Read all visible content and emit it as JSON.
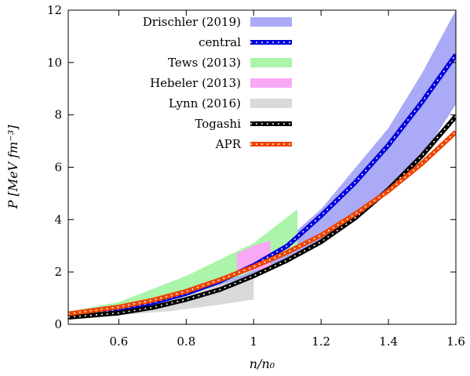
{
  "chart_data": {
    "type": "area",
    "xlabel": "n/n₀",
    "ylabel": "P [MeV fm⁻³]",
    "xlim": [
      0.45,
      1.6
    ],
    "ylim": [
      0,
      12
    ],
    "xticks": [
      0.6,
      0.8,
      1.0,
      1.2,
      1.4,
      1.6
    ],
    "xtick_labels": [
      "0.6",
      "0.8",
      "1",
      "1.2",
      "1.4",
      "1.6"
    ],
    "yticks": [
      0,
      2,
      4,
      6,
      8,
      10,
      12
    ],
    "ytick_labels": [
      "0",
      "2",
      "4",
      "6",
      "8",
      "10",
      "12"
    ],
    "grid": false,
    "legend_placement": "top-center",
    "bands": [
      {
        "name": "Drischler (2019)",
        "color": "#aaaaf6",
        "x": [
          0.45,
          0.6,
          0.8,
          1.0,
          1.13,
          1.2,
          1.4,
          1.5,
          1.6
        ],
        "lower": [
          0.3,
          0.55,
          1.05,
          1.85,
          2.7,
          3.2,
          5.0,
          6.4,
          8.4
        ],
        "upper": [
          0.4,
          0.7,
          1.35,
          2.55,
          3.6,
          4.4,
          7.5,
          9.6,
          12.0
        ]
      },
      {
        "name": "Tews (2013)",
        "color": "#aaf5aa",
        "x": [
          0.45,
          0.6,
          0.8,
          1.0,
          1.13
        ],
        "lower": [
          0.35,
          0.55,
          1.05,
          2.05,
          3.0
        ],
        "upper": [
          0.48,
          0.85,
          1.85,
          3.1,
          4.4
        ]
      },
      {
        "name": "Hebeler (2013)",
        "color": "#f8a8f4",
        "x": [
          0.95,
          1.0,
          1.05
        ],
        "lower": [
          1.9,
          2.05,
          2.2
        ],
        "upper": [
          2.7,
          3.0,
          3.2
        ]
      },
      {
        "name": "Lynn (2016)",
        "color": "#d9d9d9",
        "x": [
          0.45,
          0.6,
          0.75,
          0.9,
          1.0
        ],
        "lower": [
          0.25,
          0.35,
          0.5,
          0.75,
          0.95
        ],
        "upper": [
          0.35,
          0.55,
          0.95,
          1.5,
          1.9
        ]
      }
    ],
    "series": [
      {
        "name": "central",
        "color": "#0000dd",
        "dot_color": "#ffffff",
        "x": [
          0.45,
          0.55,
          0.6,
          0.7,
          0.8,
          0.9,
          1.0,
          1.1,
          1.2,
          1.3,
          1.4,
          1.5,
          1.6
        ],
        "y": [
          0.33,
          0.48,
          0.58,
          0.83,
          1.18,
          1.65,
          2.25,
          3.0,
          4.15,
          5.4,
          6.85,
          8.5,
          10.3
        ]
      },
      {
        "name": "Togashi",
        "color": "#000000",
        "dot_color": "#ffffff",
        "x": [
          0.45,
          0.6,
          0.7,
          0.8,
          0.9,
          1.0,
          1.1,
          1.2,
          1.3,
          1.4,
          1.5,
          1.6
        ],
        "y": [
          0.27,
          0.43,
          0.64,
          0.95,
          1.33,
          1.85,
          2.45,
          3.15,
          4.05,
          5.15,
          6.45,
          7.95
        ]
      },
      {
        "name": "APR",
        "color": "#ee4400",
        "dot_color": "#ffffff",
        "x": [
          0.45,
          0.6,
          0.7,
          0.8,
          0.9,
          1.0,
          1.1,
          1.2,
          1.3,
          1.4,
          1.5,
          1.6
        ],
        "y": [
          0.4,
          0.66,
          0.92,
          1.26,
          1.7,
          2.2,
          2.75,
          3.4,
          4.2,
          5.1,
          6.15,
          7.35
        ]
      }
    ],
    "legend": [
      {
        "label": "Drischler (2019)",
        "kind": "band",
        "color": "#aaaaf6"
      },
      {
        "label": "central",
        "kind": "line",
        "color": "#0000dd",
        "dot_color": "#ffffff"
      },
      {
        "label": "Tews (2013)",
        "kind": "band",
        "color": "#aaf5aa"
      },
      {
        "label": "Hebeler (2013)",
        "kind": "band",
        "color": "#f8a8f4"
      },
      {
        "label": "Lynn (2016)",
        "kind": "band",
        "color": "#d9d9d9"
      },
      {
        "label": "Togashi",
        "kind": "line",
        "color": "#000000",
        "dot_color": "#ffffff"
      },
      {
        "label": "APR",
        "kind": "line",
        "color": "#ee4400",
        "dot_color": "#ffffff"
      }
    ]
  }
}
